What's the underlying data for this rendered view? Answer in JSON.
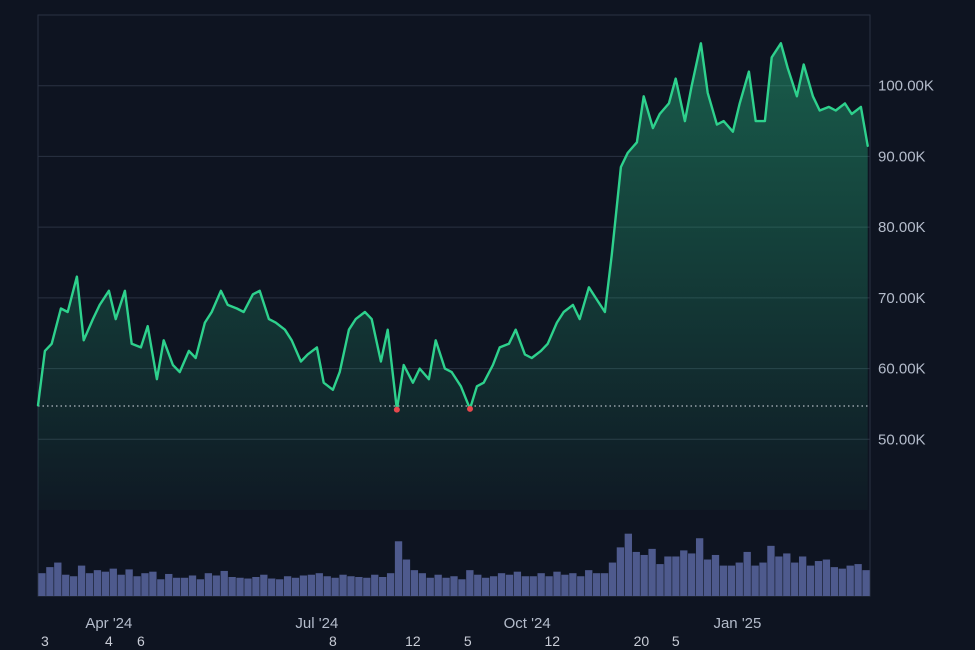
{
  "chart_data": {
    "type": "area",
    "title": "",
    "xlabel": "",
    "ylabel": "",
    "ylim": [
      40000,
      110000
    ],
    "y_ticks": [
      "50.00K",
      "60.00K",
      "70.00K",
      "80.00K",
      "90.00K",
      "100.00K"
    ],
    "y_tick_values": [
      50000,
      60000,
      70000,
      80000,
      90000,
      100000
    ],
    "x_tick_labels": [
      "Apr '24",
      "Jul '24",
      "Oct '24",
      "Jan '25"
    ],
    "x_tick_dates": [
      "2024-04-01",
      "2024-07-01",
      "2024-10-01",
      "2025-01-01"
    ],
    "x_range": [
      "2024-03-01",
      "2025-02-28"
    ],
    "x_sub_labels": [
      {
        "label": "3",
        "date": "2024-03-04"
      },
      {
        "label": "4",
        "date": "2024-04-01"
      },
      {
        "label": "6",
        "date": "2024-04-15"
      },
      {
        "label": "8",
        "date": "2024-07-08"
      },
      {
        "label": "12",
        "date": "2024-08-12"
      },
      {
        "label": "5",
        "date": "2024-09-05"
      },
      {
        "label": "12",
        "date": "2024-10-12"
      },
      {
        "label": "20",
        "date": "2024-11-20"
      },
      {
        "label": "5",
        "date": "2024-12-05"
      }
    ],
    "reference_line": 54700,
    "low_markers": [
      {
        "date": "2024-08-05",
        "value": 54200
      },
      {
        "date": "2024-09-06",
        "value": 54300
      }
    ],
    "grid": true,
    "series": [
      {
        "name": "",
        "color": "#2ed18d",
        "x": [
          "2024-03-01",
          "2024-03-04",
          "2024-03-07",
          "2024-03-11",
          "2024-03-14",
          "2024-03-18",
          "2024-03-21",
          "2024-03-25",
          "2024-03-28",
          "2024-04-01",
          "2024-04-04",
          "2024-04-08",
          "2024-04-11",
          "2024-04-15",
          "2024-04-18",
          "2024-04-22",
          "2024-04-25",
          "2024-04-29",
          "2024-05-02",
          "2024-05-06",
          "2024-05-09",
          "2024-05-13",
          "2024-05-16",
          "2024-05-20",
          "2024-05-23",
          "2024-05-27",
          "2024-05-30",
          "2024-06-03",
          "2024-06-06",
          "2024-06-10",
          "2024-06-13",
          "2024-06-17",
          "2024-06-20",
          "2024-06-24",
          "2024-06-27",
          "2024-07-01",
          "2024-07-04",
          "2024-07-08",
          "2024-07-11",
          "2024-07-15",
          "2024-07-18",
          "2024-07-22",
          "2024-07-25",
          "2024-07-29",
          "2024-08-01",
          "2024-08-05",
          "2024-08-08",
          "2024-08-12",
          "2024-08-15",
          "2024-08-19",
          "2024-08-22",
          "2024-08-26",
          "2024-08-29",
          "2024-09-02",
          "2024-09-06",
          "2024-09-09",
          "2024-09-12",
          "2024-09-16",
          "2024-09-19",
          "2024-09-23",
          "2024-09-26",
          "2024-09-30",
          "2024-10-03",
          "2024-10-07",
          "2024-10-10",
          "2024-10-14",
          "2024-10-17",
          "2024-10-21",
          "2024-10-24",
          "2024-10-28",
          "2024-10-31",
          "2024-11-04",
          "2024-11-07",
          "2024-11-11",
          "2024-11-14",
          "2024-11-18",
          "2024-11-21",
          "2024-11-25",
          "2024-11-28",
          "2024-12-02",
          "2024-12-05",
          "2024-12-09",
          "2024-12-12",
          "2024-12-16",
          "2024-12-19",
          "2024-12-23",
          "2024-12-26",
          "2024-12-30",
          "2025-01-02",
          "2025-01-06",
          "2025-01-09",
          "2025-01-13",
          "2025-01-16",
          "2025-01-20",
          "2025-01-23",
          "2025-01-27",
          "2025-01-30",
          "2025-02-03",
          "2025-02-06",
          "2025-02-10",
          "2025-02-13",
          "2025-02-17",
          "2025-02-20",
          "2025-02-24",
          "2025-02-27"
        ],
        "values": [
          54800,
          62500,
          63500,
          68500,
          68000,
          73000,
          64000,
          67000,
          69000,
          71000,
          67000,
          71000,
          63500,
          63000,
          66000,
          58500,
          64000,
          60500,
          59500,
          62500,
          61500,
          66500,
          68000,
          71000,
          69000,
          68500,
          68000,
          70500,
          71000,
          67000,
          66500,
          65500,
          64000,
          61000,
          62000,
          63000,
          58000,
          57000,
          59500,
          65500,
          67000,
          68000,
          67000,
          61000,
          65500,
          54200,
          60500,
          58000,
          60000,
          58500,
          64000,
          60000,
          59500,
          57500,
          54300,
          57500,
          58000,
          60500,
          63000,
          63500,
          65500,
          62000,
          61500,
          62500,
          63500,
          66500,
          68000,
          69000,
          67000,
          71500,
          70000,
          68000,
          76000,
          88500,
          90500,
          92000,
          98500,
          94000,
          96000,
          97500,
          101000,
          95000,
          100000,
          106000,
          99000,
          94500,
          95000,
          93500,
          97500,
          102000,
          95000,
          95000,
          104000,
          106000,
          102500,
          98500,
          103000,
          98500,
          96500,
          97000,
          96500,
          97500,
          96000,
          97000,
          91500
        ]
      }
    ],
    "volume": {
      "color": "#4e5a8d",
      "scale_max": 100,
      "values": [
        30,
        38,
        44,
        28,
        26,
        40,
        30,
        34,
        32,
        36,
        28,
        35,
        26,
        30,
        32,
        22,
        29,
        24,
        24,
        27,
        22,
        30,
        27,
        33,
        25,
        24,
        23,
        25,
        28,
        23,
        22,
        26,
        24,
        27,
        28,
        30,
        26,
        24,
        28,
        26,
        25,
        24,
        28,
        25,
        30,
        72,
        48,
        34,
        30,
        24,
        28,
        24,
        26,
        22,
        34,
        28,
        24,
        26,
        30,
        28,
        32,
        26,
        26,
        30,
        26,
        32,
        28,
        30,
        26,
        34,
        30,
        30,
        44,
        64,
        82,
        58,
        54,
        62,
        42,
        52,
        52,
        60,
        56,
        76,
        48,
        54,
        40,
        40,
        44,
        58,
        40,
        44,
        66,
        52,
        56,
        44,
        52,
        40,
        46,
        48,
        38,
        36,
        40,
        42,
        34
      ]
    }
  }
}
